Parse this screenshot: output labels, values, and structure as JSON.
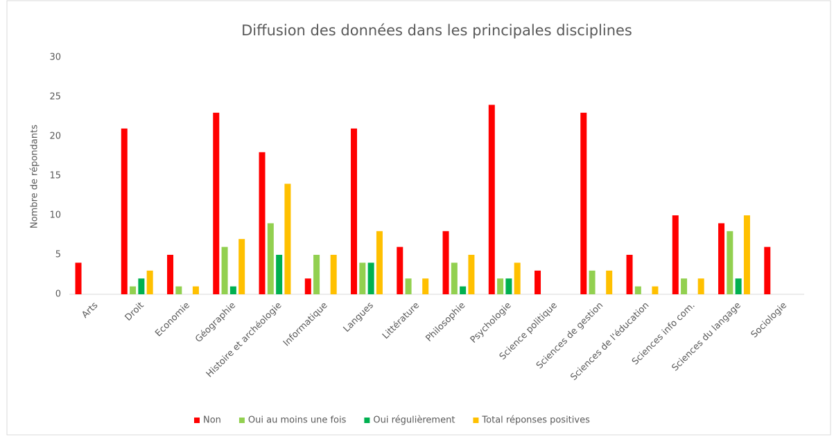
{
  "chart_data": {
    "type": "bar",
    "title": "Diffusion des données dans les principales disciplines",
    "y_label": "Nombre de répondants",
    "categories": [
      "Arts",
      "Droit",
      "Economie",
      "Géographie",
      "Histoire et archéologie",
      "Informatique",
      "Langues",
      "Littérature",
      "Philosophie",
      "Psychologie",
      "Science politique",
      "Sciences de gestion",
      "Sciences de l'éducation",
      "Sciences info com.",
      "Sciences du langage",
      "Sociologie"
    ],
    "series": [
      {
        "name": "Non",
        "color": "#ff0000",
        "values": [
          4,
          21,
          5,
          23,
          18,
          2,
          21,
          6,
          8,
          24,
          3,
          23,
          5,
          10,
          9,
          6
        ]
      },
      {
        "name": "Oui au moins une fois",
        "color": "#92d050",
        "values": [
          0,
          1,
          1,
          6,
          9,
          5,
          4,
          2,
          4,
          2,
          0,
          3,
          1,
          2,
          8,
          0
        ]
      },
      {
        "name": "Oui régulièrement",
        "color": "#00b050",
        "values": [
          0,
          2,
          0,
          1,
          5,
          0,
          4,
          0,
          1,
          2,
          0,
          0,
          0,
          0,
          2,
          0
        ]
      },
      {
        "name": "Total réponses positives",
        "color": "#ffc000",
        "values": [
          0,
          3,
          1,
          7,
          14,
          5,
          8,
          2,
          5,
          4,
          0,
          3,
          1,
          2,
          10,
          0
        ]
      }
    ],
    "ylim": [
      0,
      30
    ],
    "yticks": [
      0,
      5,
      10,
      15,
      20,
      25,
      30
    ],
    "legend": "bottom"
  }
}
